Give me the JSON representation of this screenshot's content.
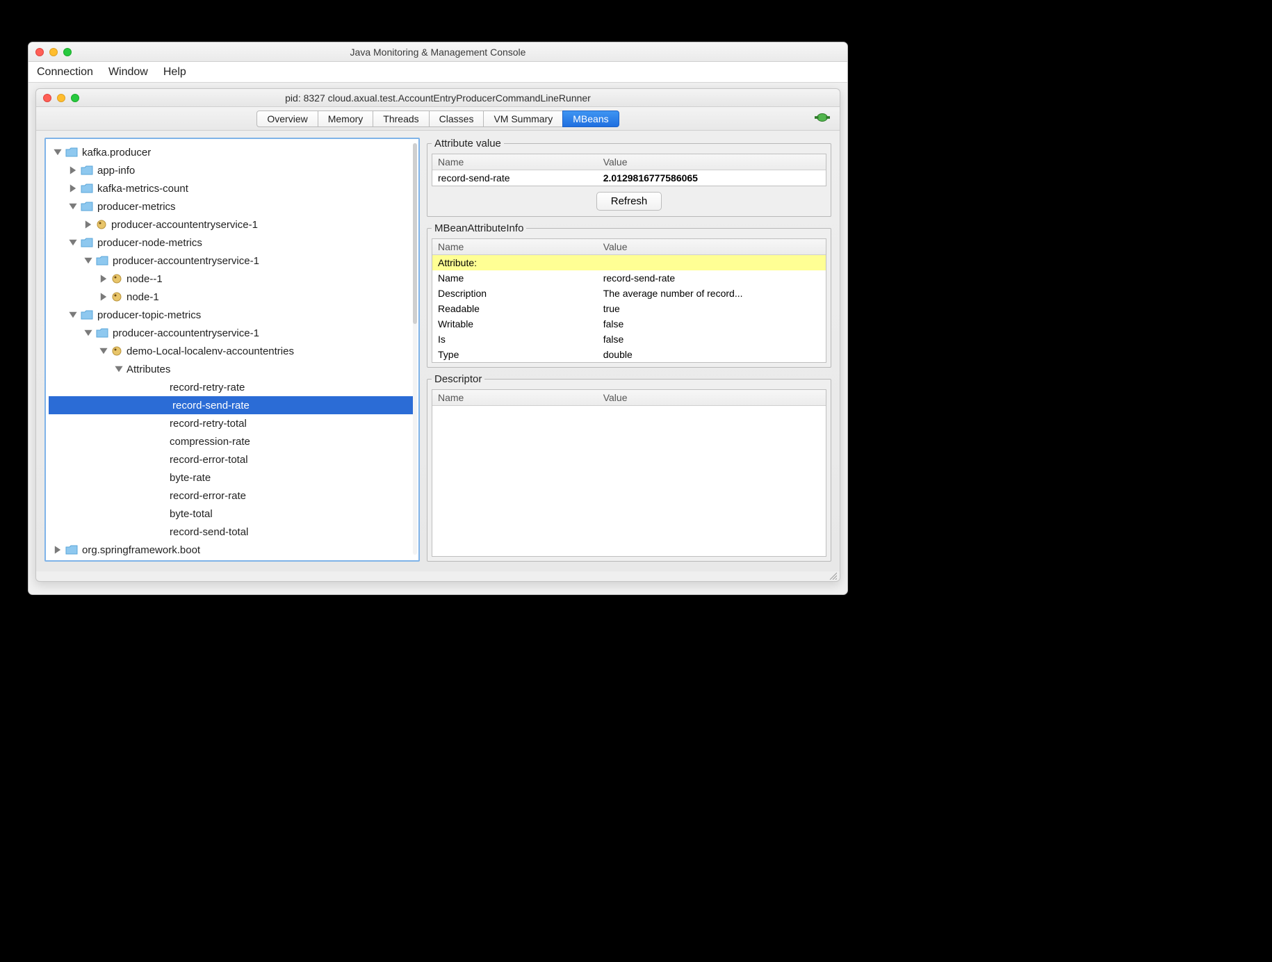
{
  "outer": {
    "title": "Java Monitoring & Management Console",
    "menus": [
      "Connection",
      "Window",
      "Help"
    ]
  },
  "inner": {
    "title": "pid: 8327 cloud.axual.test.AccountEntryProducerCommandLineRunner",
    "tabs": [
      "Overview",
      "Memory",
      "Threads",
      "Classes",
      "VM Summary",
      "MBeans"
    ],
    "active_tab_index": 5
  },
  "tree": {
    "nodes": [
      {
        "indent": 0,
        "tw": "down",
        "icon": "folder",
        "label": "kafka.producer",
        "sel": false
      },
      {
        "indent": 1,
        "tw": "right",
        "icon": "folder",
        "label": "app-info",
        "sel": false
      },
      {
        "indent": 1,
        "tw": "right",
        "icon": "folder",
        "label": "kafka-metrics-count",
        "sel": false
      },
      {
        "indent": 1,
        "tw": "down",
        "icon": "folder",
        "label": "producer-metrics",
        "sel": false
      },
      {
        "indent": 2,
        "tw": "right",
        "icon": "bean",
        "label": "producer-accountentryservice-1",
        "sel": false
      },
      {
        "indent": 1,
        "tw": "down",
        "icon": "folder",
        "label": "producer-node-metrics",
        "sel": false
      },
      {
        "indent": 2,
        "tw": "down",
        "icon": "folder",
        "label": "producer-accountentryservice-1",
        "sel": false
      },
      {
        "indent": 3,
        "tw": "right",
        "icon": "bean",
        "label": "node--1",
        "sel": false
      },
      {
        "indent": 3,
        "tw": "right",
        "icon": "bean",
        "label": "node-1",
        "sel": false
      },
      {
        "indent": 1,
        "tw": "down",
        "icon": "folder",
        "label": "producer-topic-metrics",
        "sel": false
      },
      {
        "indent": 2,
        "tw": "down",
        "icon": "folder",
        "label": "producer-accountentryservice-1",
        "sel": false
      },
      {
        "indent": 3,
        "tw": "down",
        "icon": "bean",
        "label": "demo-Local-localenv-accountentries",
        "sel": false
      },
      {
        "indent": 4,
        "tw": "down",
        "icon": "none",
        "label": "Attributes",
        "sel": false
      },
      {
        "indent": 6,
        "tw": "none",
        "icon": "none",
        "label": "record-retry-rate",
        "sel": false
      },
      {
        "indent": 6,
        "tw": "none",
        "icon": "none",
        "label": "record-send-rate",
        "sel": true
      },
      {
        "indent": 6,
        "tw": "none",
        "icon": "none",
        "label": "record-retry-total",
        "sel": false
      },
      {
        "indent": 6,
        "tw": "none",
        "icon": "none",
        "label": "compression-rate",
        "sel": false
      },
      {
        "indent": 6,
        "tw": "none",
        "icon": "none",
        "label": "record-error-total",
        "sel": false
      },
      {
        "indent": 6,
        "tw": "none",
        "icon": "none",
        "label": "byte-rate",
        "sel": false
      },
      {
        "indent": 6,
        "tw": "none",
        "icon": "none",
        "label": "record-error-rate",
        "sel": false
      },
      {
        "indent": 6,
        "tw": "none",
        "icon": "none",
        "label": "byte-total",
        "sel": false
      },
      {
        "indent": 6,
        "tw": "none",
        "icon": "none",
        "label": "record-send-total",
        "sel": false
      },
      {
        "indent": 0,
        "tw": "right",
        "icon": "folder",
        "label": "org.springframework.boot",
        "sel": false
      }
    ]
  },
  "attr_value": {
    "legend": "Attribute value",
    "hdr_name": "Name",
    "hdr_value": "Value",
    "row_name": "record-send-rate",
    "row_value": "2.0129816777586065",
    "refresh": "Refresh"
  },
  "attr_info": {
    "legend": "MBeanAttributeInfo",
    "hdr_name": "Name",
    "hdr_value": "Value",
    "rows": [
      {
        "n": "Attribute:",
        "v": "",
        "hl": true
      },
      {
        "n": "Name",
        "v": "record-send-rate"
      },
      {
        "n": "Description",
        "v": "The average number of record..."
      },
      {
        "n": "Readable",
        "v": "true"
      },
      {
        "n": "Writable",
        "v": "false"
      },
      {
        "n": "Is",
        "v": "false"
      },
      {
        "n": "Type",
        "v": "double"
      }
    ]
  },
  "descriptor": {
    "legend": "Descriptor",
    "hdr_name": "Name",
    "hdr_value": "Value"
  }
}
